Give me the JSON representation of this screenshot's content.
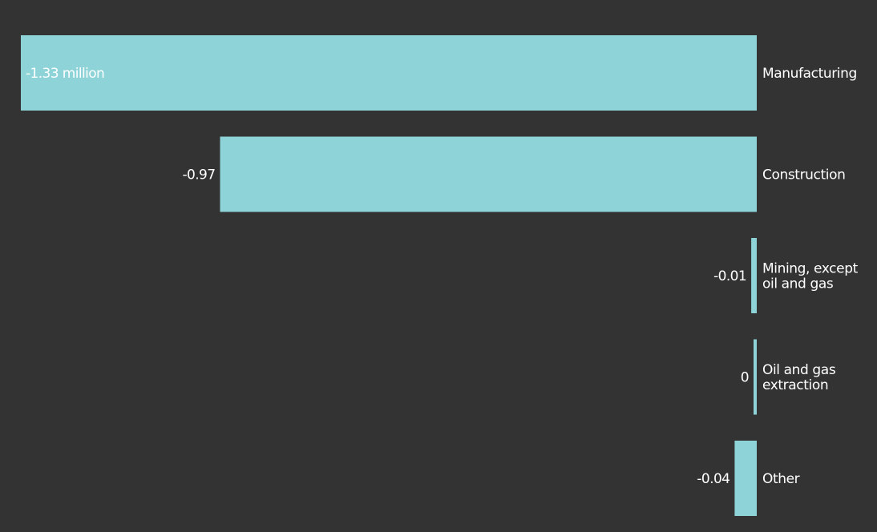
{
  "chart_data": {
    "type": "bar",
    "orientation": "horizontal",
    "categories": [
      [
        "Manufacturing"
      ],
      [
        "Construction"
      ],
      [
        "Mining, except",
        "oil and gas"
      ],
      [
        "Oil and gas",
        "extraction"
      ],
      [
        "Other"
      ]
    ],
    "values": [
      -1.33,
      -0.97,
      -0.01,
      0,
      -0.04
    ],
    "value_labels": [
      "-1.33 million",
      "-0.97",
      "-0.01",
      "0",
      "-0.04"
    ],
    "title": "",
    "xlabel": "",
    "ylabel": "",
    "xlim": [
      -1.33,
      0
    ],
    "grid": false,
    "legend": "none"
  },
  "colors": {
    "background": "#333333",
    "bar": "#8dd3d8",
    "text": "#ffffff"
  }
}
